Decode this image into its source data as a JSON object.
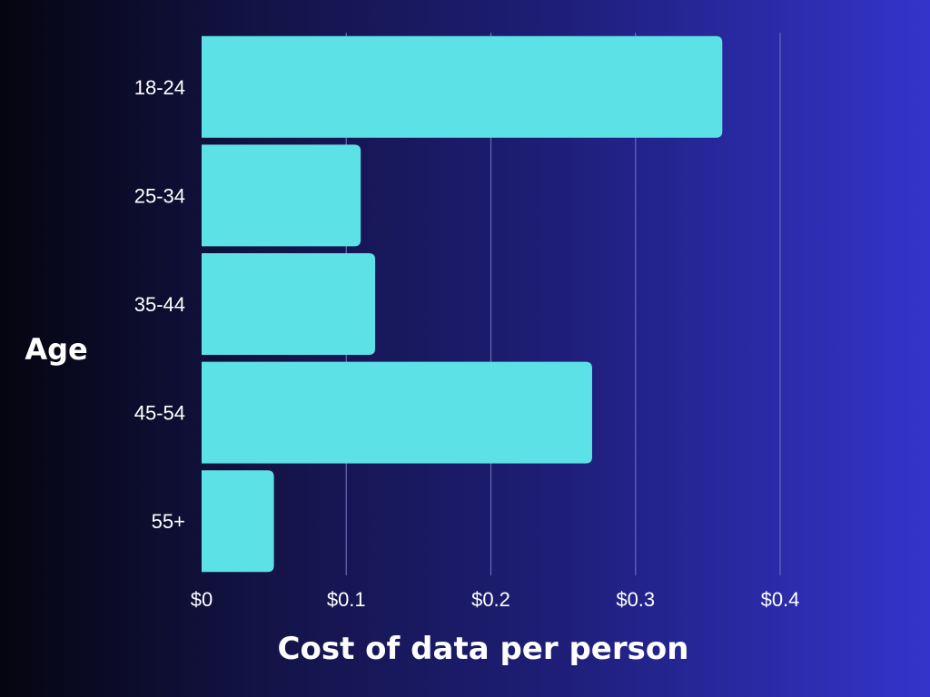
{
  "chart_data": {
    "type": "bar",
    "orientation": "horizontal",
    "categories": [
      "18-24",
      "25-34",
      "35-44",
      "45-54",
      "55+"
    ],
    "values": [
      0.36,
      0.11,
      0.12,
      0.27,
      0.05
    ],
    "xlabel": "Cost of data per person",
    "ylabel": "Age",
    "xlim": [
      0,
      0.4
    ],
    "x_ticks": [
      0,
      0.1,
      0.2,
      0.3,
      0.4
    ],
    "x_tick_labels": [
      "$0",
      "$0.1",
      "$0.2",
      "$0.3",
      "$0.4"
    ],
    "grid": "vertical",
    "legend": "none"
  },
  "colors": {
    "bar": "#5ce1e6",
    "gridline": "#6a6ab8",
    "text": "#ffffff"
  }
}
